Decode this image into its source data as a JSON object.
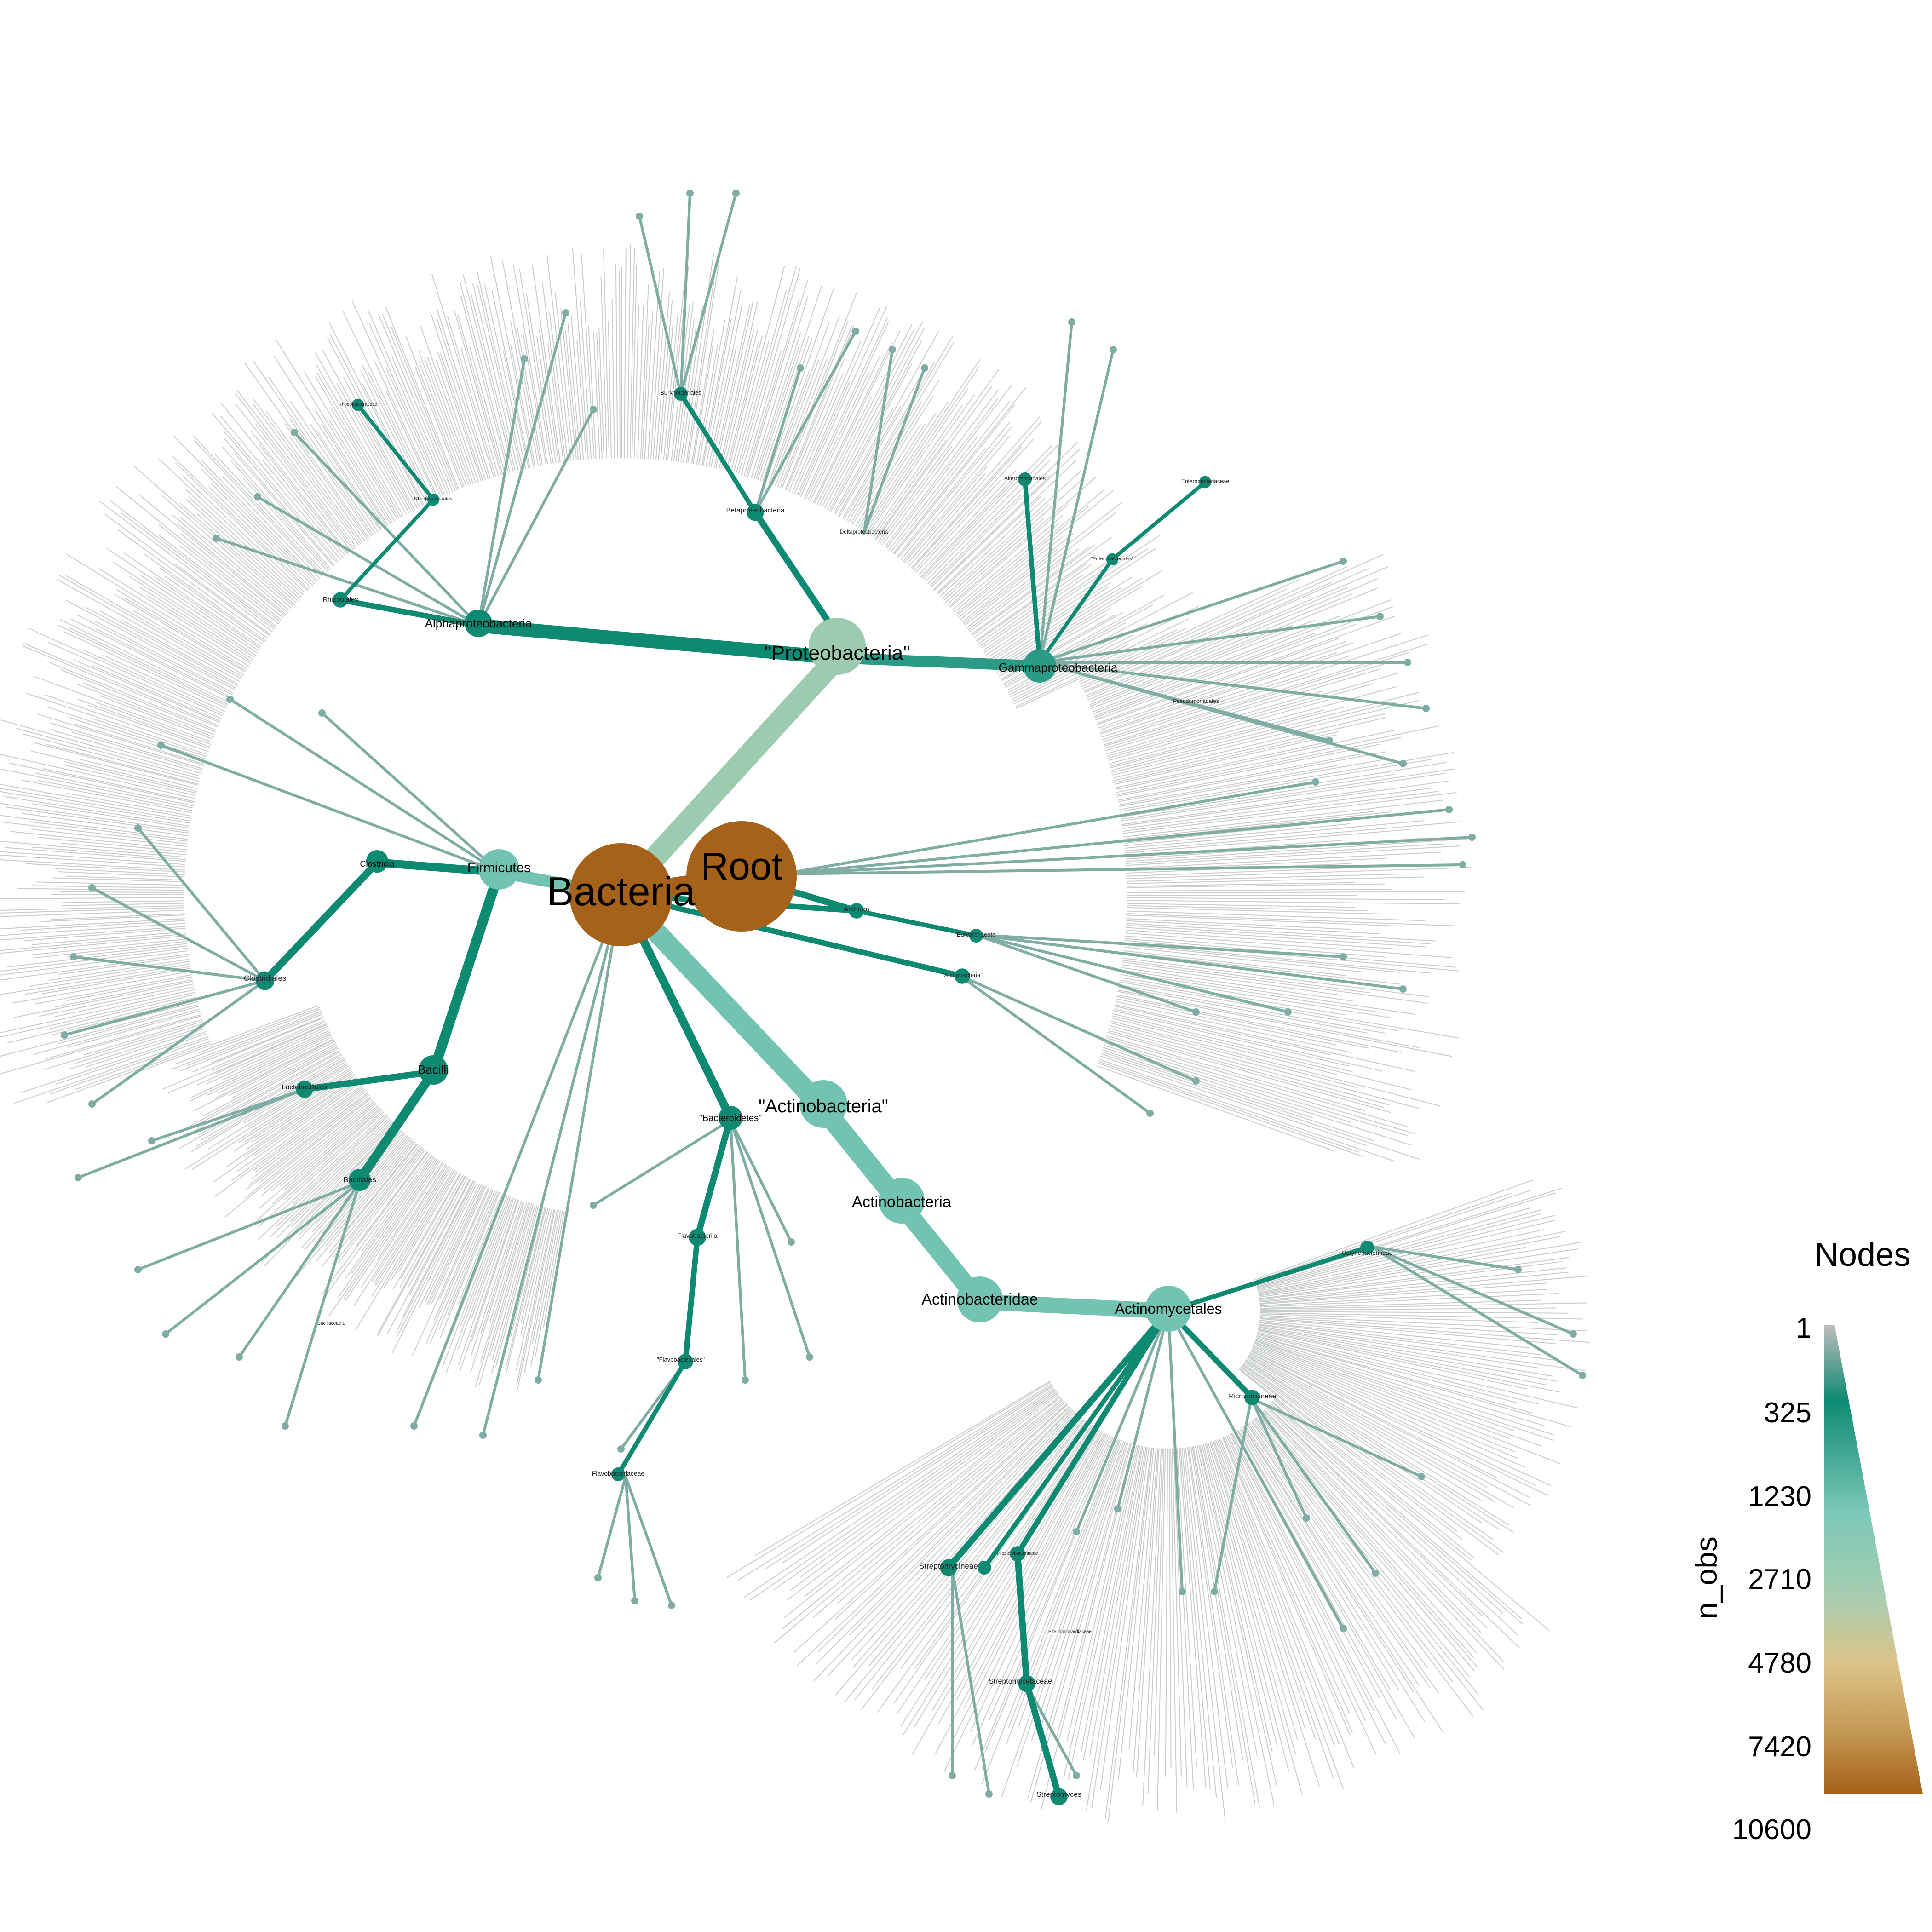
{
  "legend": {
    "title": "Nodes",
    "axis_label": "n_obs",
    "ticks": [
      "1",
      "325",
      "1230",
      "2710",
      "4780",
      "7420",
      "10600"
    ],
    "tick_values": [
      1,
      325,
      1230,
      2710,
      4780,
      7420,
      10600
    ],
    "color_stops": [
      "#bdbdbd",
      "#0e8a73",
      "#7cc8b8",
      "#a7cdb0",
      "#dcc48a",
      "#c59b57",
      "#a6611a"
    ]
  },
  "colors": {
    "edge_faint": "#c8cccb",
    "dark_teal": "#0f8a72",
    "mid_teal": "#2b9a86",
    "grey_teal": "#7fada4",
    "light_teal": "#72c3b2",
    "pale_green": "#9dcbb0",
    "brown": "#a6611a"
  },
  "tree": {
    "major_nodes": [
      {
        "id": "root",
        "label": "Root",
        "n_obs": 10600
      },
      {
        "id": "bacteria",
        "label": "Bacteria",
        "n_obs": 10400
      },
      {
        "id": "proteobacteria",
        "label": "\"Proteobacteria\"",
        "n_obs": 3500
      },
      {
        "id": "actinobacteria_phylum",
        "label": "\"Actinobacteria\"",
        "n_obs": 2710
      },
      {
        "id": "actinobacteria",
        "label": "Actinobacteria",
        "n_obs": 2650
      },
      {
        "id": "actinobacteridae",
        "label": "Actinobacteridae",
        "n_obs": 2500
      },
      {
        "id": "actinomycetales",
        "label": "Actinomycetales",
        "n_obs": 2400
      },
      {
        "id": "firmicutes",
        "label": "Firmicutes",
        "n_obs": 2200
      },
      {
        "id": "alphaproteobacteria",
        "label": "Alphaproteobacteria",
        "n_obs": 1230
      },
      {
        "id": "gammaproteobacteria",
        "label": "Gammaproteobacteria",
        "n_obs": 1400
      },
      {
        "id": "bacilli",
        "label": "Bacilli",
        "n_obs": 1300
      },
      {
        "id": "clostridia",
        "label": "Clostridia",
        "n_obs": 800
      },
      {
        "id": "bacteroidetes",
        "label": "\"Bacteroidetes\"",
        "n_obs": 700
      }
    ],
    "minor_labels": [
      "Rhodobacteraceae",
      "Rhodobacterales",
      "Rhizobiales",
      "Burkholderiales",
      "Betaproteobacteria",
      "Deltaproteobacteria",
      "Alteromonadales",
      "Enterobacteriaceae",
      "\"Enterobacteriales\"",
      "Pseudomonadales",
      "Archaea",
      "\"Euryarchaeota\"",
      "\"Acidobacteria\"",
      "Clostridiales",
      "Lactobacillales",
      "Bacillales",
      "Bacillaceae 1",
      "Flavobacteriia",
      "\"Flavobacteriales\"",
      "Flavobacteriaceae",
      "Corynebacterineae",
      "Micrococcineae",
      "Streptomycineae",
      "Propionibacterineae",
      "Pseudonocardiaceae",
      "Streptomycetaceae",
      "Streptomyces"
    ]
  }
}
